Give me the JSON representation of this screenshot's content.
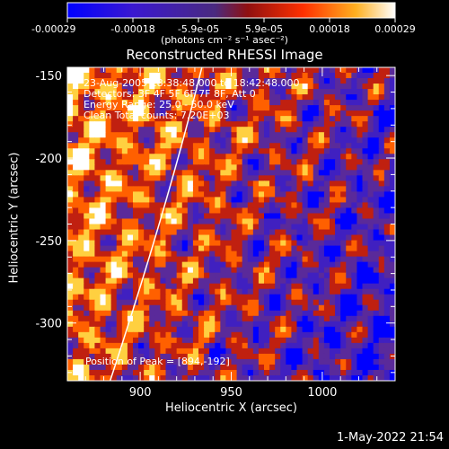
{
  "chart_data": {
    "type": "heatmap",
    "title": "Reconstructed RHESSI Image",
    "xlabel": "Heliocentric X (arcsec)",
    "ylabel": "Heliocentric Y (arcsec)",
    "xlim": [
      860,
      1040
    ],
    "ylim": [
      -335,
      -145
    ],
    "x_ticks": [
      "900",
      "950",
      "1000"
    ],
    "x_tick_values": [
      900,
      950,
      1000
    ],
    "y_ticks": [
      "-150",
      "-200",
      "-250",
      "-300"
    ],
    "y_tick_values": [
      -150,
      -200,
      -250,
      -300
    ],
    "colorbar": {
      "range": [
        -0.00029,
        0.00029
      ],
      "tick_labels": [
        "-0.00029",
        "-0.00018",
        "-5.9e-05",
        "5.9e-05",
        "0.00018",
        "0.00029"
      ],
      "label": "(photons cm⁻² s⁻¹ asec⁻²)",
      "colors": [
        "#0000ff",
        "#4020c0",
        "#5a2a9a",
        "#c02010",
        "#ff6000",
        "#ffd040",
        "#ffffff"
      ]
    },
    "annotations": [
      "23-Aug-2005 18:38:48.000 to 18:42:48.000",
      "Detectors: 3F 4F 5F 6F 7F 8F, Att 0",
      "Energy Range: 25.0 - 50.0 keV",
      "Clean   Total counts: 7.20E+03"
    ],
    "peak_label": "Position of Peak = [894,-192]",
    "limb_color": "#ffffff"
  },
  "footer_date": "1-May-2022 21:54"
}
